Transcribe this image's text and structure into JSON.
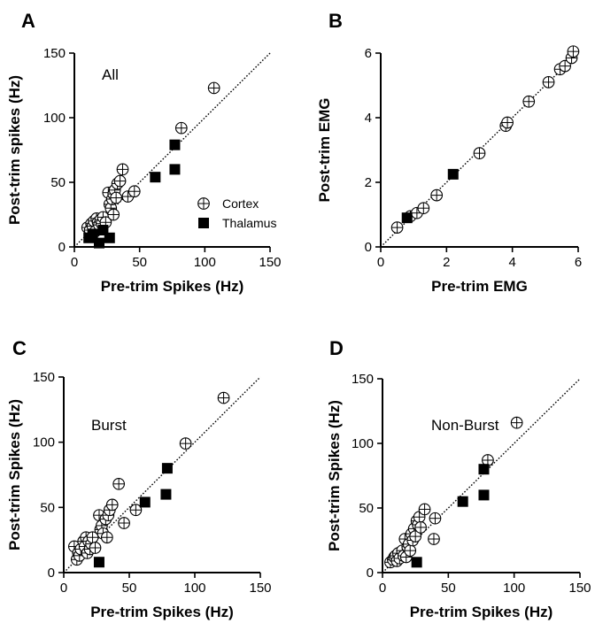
{
  "colors": {
    "ink": "#000000",
    "background": "#ffffff"
  },
  "legend": {
    "entries": [
      {
        "label": "Cortex",
        "marker": "circle-plus"
      },
      {
        "label": "Thalamus",
        "marker": "filled-square"
      }
    ]
  },
  "chart_data": [
    {
      "panel": "A",
      "type": "scatter",
      "title": "All",
      "xlabel": "Pre-trim Spikes  (Hz)",
      "ylabel": "Post-trim spikes (Hz)",
      "xlim": [
        0,
        150
      ],
      "ylim": [
        0,
        150
      ],
      "xticks": [
        0,
        50,
        100,
        150
      ],
      "yticks": [
        0,
        50,
        100,
        150
      ],
      "identity_line": true,
      "series": [
        {
          "name": "Cortex",
          "marker": "circle-plus",
          "x": [
            10,
            12,
            13,
            14,
            15,
            16,
            17,
            18,
            19,
            20,
            21,
            22,
            24,
            26,
            27,
            28,
            29,
            30,
            30,
            31,
            32,
            33,
            35,
            37,
            41,
            46,
            82,
            107
          ],
          "y": [
            15,
            13,
            18,
            16,
            20,
            12,
            22,
            19,
            17,
            21,
            18,
            23,
            19,
            42,
            33,
            30,
            37,
            41,
            25,
            44,
            38,
            49,
            51,
            60,
            39,
            43,
            92,
            123
          ]
        },
        {
          "name": "Thalamus",
          "marker": "filled-square",
          "x": [
            11,
            14,
            19,
            22,
            27,
            62,
            77,
            77
          ],
          "y": [
            7,
            10,
            3,
            13,
            7,
            54,
            60,
            79
          ]
        }
      ]
    },
    {
      "panel": "B",
      "type": "scatter",
      "title": "",
      "xlabel": "Pre-trim EMG",
      "ylabel": "Post-trim EMG",
      "xlim": [
        0,
        6
      ],
      "ylim": [
        0,
        6
      ],
      "xticks": [
        0,
        2,
        4,
        6
      ],
      "yticks": [
        0,
        2,
        4,
        6
      ],
      "identity_line": true,
      "series": [
        {
          "name": "Cortex",
          "marker": "circle-plus",
          "x": [
            0.5,
            0.9,
            1.1,
            1.3,
            1.7,
            3.0,
            3.8,
            3.85,
            4.5,
            5.1,
            5.45,
            5.6,
            5.8,
            5.85
          ],
          "y": [
            0.6,
            0.95,
            1.05,
            1.2,
            1.6,
            2.9,
            3.75,
            3.85,
            4.5,
            5.1,
            5.5,
            5.6,
            5.85,
            6.05
          ]
        },
        {
          "name": "Thalamus",
          "marker": "filled-square",
          "x": [
            0.8,
            2.2
          ],
          "y": [
            0.9,
            2.25
          ]
        }
      ]
    },
    {
      "panel": "C",
      "type": "scatter",
      "title": "Burst",
      "xlabel": "Pre-trim Spikes  (Hz)",
      "ylabel": "Post-trim Spikes (Hz)",
      "xlim": [
        0,
        150
      ],
      "ylim": [
        0,
        150
      ],
      "xticks": [
        0,
        50,
        100,
        150
      ],
      "yticks": [
        0,
        50,
        100,
        150
      ],
      "identity_line": true,
      "series": [
        {
          "name": "Cortex",
          "marker": "circle-plus",
          "x": [
            8,
            10,
            11,
            12,
            13,
            15,
            16,
            17,
            18,
            19,
            20,
            21,
            22,
            24,
            27,
            28,
            29,
            30,
            32,
            33,
            34,
            35,
            37,
            42,
            46,
            55,
            93,
            122
          ],
          "y": [
            20,
            10,
            15,
            13,
            18,
            24,
            20,
            27,
            15,
            24,
            18,
            22,
            27,
            19,
            44,
            33,
            36,
            30,
            41,
            27,
            44,
            48,
            52,
            68,
            38,
            48,
            99,
            134
          ]
        },
        {
          "name": "Thalamus",
          "marker": "filled-square",
          "x": [
            27,
            62,
            78,
            79
          ],
          "y": [
            8,
            54,
            60,
            80
          ]
        }
      ]
    },
    {
      "panel": "D",
      "type": "scatter",
      "title": "Non-Burst",
      "xlabel": "Pre-trim Spikes  (Hz)",
      "ylabel": "Post-trim Spikes (Hz)",
      "xlim": [
        0,
        150
      ],
      "ylim": [
        0,
        150
      ],
      "xticks": [
        0,
        50,
        100,
        150
      ],
      "yticks": [
        0,
        50,
        100,
        150
      ],
      "identity_line": true,
      "series": [
        {
          "name": "Cortex",
          "marker": "circle-plus",
          "x": [
            6,
            8,
            9,
            10,
            11,
            12,
            13,
            15,
            16,
            17,
            18,
            19,
            20,
            21,
            22,
            23,
            24,
            25,
            26,
            27,
            28,
            29,
            32,
            39,
            40,
            80,
            102
          ],
          "y": [
            8,
            10,
            12,
            13,
            9,
            15,
            11,
            17,
            13,
            26,
            12,
            20,
            22,
            17,
            30,
            25,
            34,
            28,
            40,
            37,
            43,
            35,
            49,
            26,
            42,
            87,
            116
          ]
        },
        {
          "name": "Thalamus",
          "marker": "filled-square",
          "x": [
            26,
            61,
            77,
            77
          ],
          "y": [
            8,
            55,
            60,
            80
          ]
        }
      ]
    }
  ]
}
